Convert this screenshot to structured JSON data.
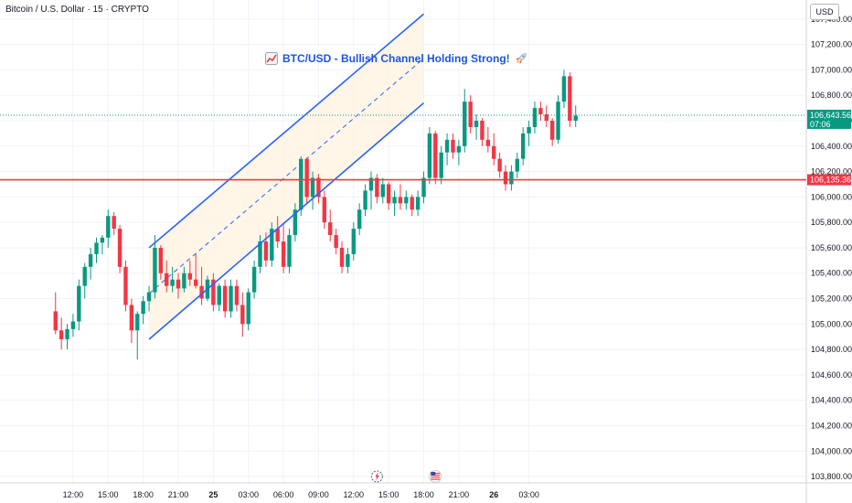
{
  "header": {
    "symbol_title": "Bitcoin / U.S. Dollar · 15 · CRYPTO"
  },
  "currency": "USD",
  "annotation": {
    "text": "BTC/USD - Bullish Channel Holding Strong!",
    "icon_left": "chart-increasing-emoji",
    "icon_right": "rocket-emoji",
    "color": "#1e53e5"
  },
  "colors": {
    "up": "#089981",
    "down": "#f23645",
    "channel_line": "#2962ff",
    "channel_fill": "#fff3e0",
    "support_line": "#f23645",
    "grid": "#f0f3fa",
    "current_price": "#089981"
  },
  "price_tags": {
    "current": {
      "value": 106643.56,
      "label": "106,643.56",
      "countdown": "07:06"
    },
    "support": {
      "value": 106135.36,
      "label": "106,135.36"
    }
  },
  "event_icons": [
    {
      "name": "lightning-event-icon",
      "x": "Jun 25 14:00"
    },
    {
      "name": "us-flag-event-icon",
      "x": "Jun 25 19:00"
    }
  ],
  "chart_data": {
    "type": "candlestick",
    "title": "",
    "interval": "15m",
    "x_axis": {
      "tick_labels": [
        "12:00",
        "15:00",
        "18:00",
        "21:00",
        "25",
        "03:00",
        "06:00",
        "09:00",
        "12:00",
        "15:00",
        "18:00",
        "21:00",
        "26",
        "03:00"
      ]
    },
    "y_axis": {
      "range": [
        103750,
        107550
      ],
      "side": "right",
      "tick_labels": [
        "103,800.00",
        "104,000.00",
        "104,200.00",
        "104,400.00",
        "104,600.00",
        "104,800.00",
        "105,000.00",
        "105,200.00",
        "105,400.00",
        "105,600.00",
        "105,800.00",
        "106,000.00",
        "106,200.00",
        "106,400.00",
        "106,600.00",
        "106,800.00",
        "107,000.00",
        "107,200.00",
        "107,400.00"
      ]
    },
    "grid": true,
    "horizontal_line": {
      "value": 106135.36
    },
    "channel": {
      "start": "Jun 24 18:30",
      "end": "Jun 25 18:00",
      "lower": [
        104880,
        106740
      ],
      "upper": [
        105600,
        107440
      ],
      "midline": "dashed"
    },
    "candles_start": "Jun 24 10:30",
    "candles_interval_minutes": 30,
    "candles": [
      [
        105100,
        105250,
        104920,
        104950
      ],
      [
        104950,
        105050,
        104800,
        104880
      ],
      [
        104880,
        105000,
        104800,
        104960
      ],
      [
        104960,
        105080,
        104900,
        105020
      ],
      [
        105020,
        105350,
        104950,
        105300
      ],
      [
        105300,
        105480,
        105200,
        105450
      ],
      [
        105450,
        105600,
        105350,
        105550
      ],
      [
        105550,
        105680,
        105480,
        105640
      ],
      [
        105640,
        105700,
        105550,
        105680
      ],
      [
        105680,
        105900,
        105600,
        105850
      ],
      [
        105850,
        105880,
        105700,
        105750
      ],
      [
        105750,
        105780,
        105400,
        105450
      ],
      [
        105450,
        105500,
        105100,
        105150
      ],
      [
        105150,
        105200,
        104850,
        104950
      ],
      [
        104950,
        105100,
        104720,
        105080
      ],
      [
        105080,
        105220,
        105000,
        105180
      ],
      [
        105180,
        105300,
        105100,
        105250
      ],
      [
        105250,
        105700,
        105200,
        105600
      ],
      [
        105600,
        105620,
        105350,
        105400
      ],
      [
        105400,
        105500,
        105250,
        105300
      ],
      [
        105300,
        105450,
        105250,
        105350
      ],
      [
        105350,
        105400,
        105200,
        105280
      ],
      [
        105280,
        105450,
        105250,
        105400
      ],
      [
        105400,
        105500,
        105300,
        105350
      ],
      [
        105350,
        105550,
        105280,
        105300
      ],
      [
        105300,
        105450,
        105150,
        105200
      ],
      [
        105200,
        105380,
        105180,
        105350
      ],
      [
        105350,
        105400,
        105100,
        105150
      ],
      [
        105150,
        105320,
        105100,
        105300
      ],
      [
        105300,
        105350,
        105050,
        105100
      ],
      [
        105100,
        105350,
        105050,
        105300
      ],
      [
        105300,
        105350,
        105100,
        105150
      ],
      [
        105150,
        105250,
        104900,
        105000
      ],
      [
        105000,
        105280,
        104950,
        105250
      ],
      [
        105250,
        105500,
        105200,
        105450
      ],
      [
        105450,
        105700,
        105400,
        105650
      ],
      [
        105650,
        105720,
        105450,
        105500
      ],
      [
        105500,
        105800,
        105450,
        105750
      ],
      [
        105750,
        105850,
        105600,
        105650
      ],
      [
        105650,
        105800,
        105400,
        105450
      ],
      [
        105450,
        105750,
        105400,
        105700
      ],
      [
        105700,
        105950,
        105650,
        105900
      ],
      [
        105900,
        106320,
        105850,
        106300
      ],
      [
        106300,
        106310,
        105950,
        106000
      ],
      [
        106000,
        106200,
        105900,
        106150
      ],
      [
        106150,
        106180,
        105950,
        106000
      ],
      [
        106000,
        106050,
        105750,
        105800
      ],
      [
        105800,
        105900,
        105650,
        105700
      ],
      [
        105700,
        105750,
        105550,
        105600
      ],
      [
        105600,
        105650,
        105400,
        105450
      ],
      [
        105450,
        105600,
        105400,
        105550
      ],
      [
        105550,
        105800,
        105500,
        105750
      ],
      [
        105750,
        105950,
        105700,
        105900
      ],
      [
        105900,
        106100,
        105850,
        106050
      ],
      [
        106050,
        106200,
        105900,
        106150
      ],
      [
        106150,
        106180,
        105950,
        106000
      ],
      [
        106000,
        106150,
        105950,
        106100
      ],
      [
        106100,
        106120,
        105900,
        105950
      ],
      [
        105950,
        106050,
        105850,
        106000
      ],
      [
        106000,
        106100,
        105900,
        105950
      ],
      [
        105950,
        106050,
        105900,
        106000
      ],
      [
        106000,
        106020,
        105850,
        105900
      ],
      [
        105900,
        106050,
        105850,
        106000
      ],
      [
        106000,
        106200,
        105950,
        106150
      ],
      [
        106150,
        106550,
        106100,
        106500
      ],
      [
        106500,
        106520,
        106100,
        106150
      ],
      [
        106150,
        106400,
        106100,
        106350
      ],
      [
        106350,
        106500,
        106250,
        106450
      ],
      [
        106450,
        106500,
        106300,
        106350
      ],
      [
        106350,
        106450,
        106250,
        106400
      ],
      [
        106400,
        106850,
        106350,
        106750
      ],
      [
        106750,
        106800,
        106500,
        106550
      ],
      [
        106550,
        106650,
        106450,
        106600
      ],
      [
        106600,
        106620,
        106400,
        106450
      ],
      [
        106450,
        106550,
        106350,
        106400
      ],
      [
        106400,
        106500,
        106250,
        106300
      ],
      [
        106300,
        106350,
        106150,
        106200
      ],
      [
        106200,
        106250,
        106050,
        106100
      ],
      [
        106100,
        106250,
        106050,
        106200
      ],
      [
        106200,
        106350,
        106150,
        106300
      ],
      [
        106300,
        106550,
        106250,
        106500
      ],
      [
        106500,
        106600,
        106400,
        106550
      ],
      [
        106550,
        106750,
        106500,
        106700
      ],
      [
        106700,
        106750,
        106600,
        106650
      ],
      [
        106650,
        106720,
        106550,
        106600
      ],
      [
        106600,
        106620,
        106400,
        106450
      ],
      [
        106450,
        106800,
        106420,
        106750
      ],
      [
        106750,
        107000,
        106700,
        106950
      ],
      [
        106950,
        106980,
        106550,
        106600
      ],
      [
        106600,
        106720,
        106550,
        106640
      ]
    ]
  }
}
